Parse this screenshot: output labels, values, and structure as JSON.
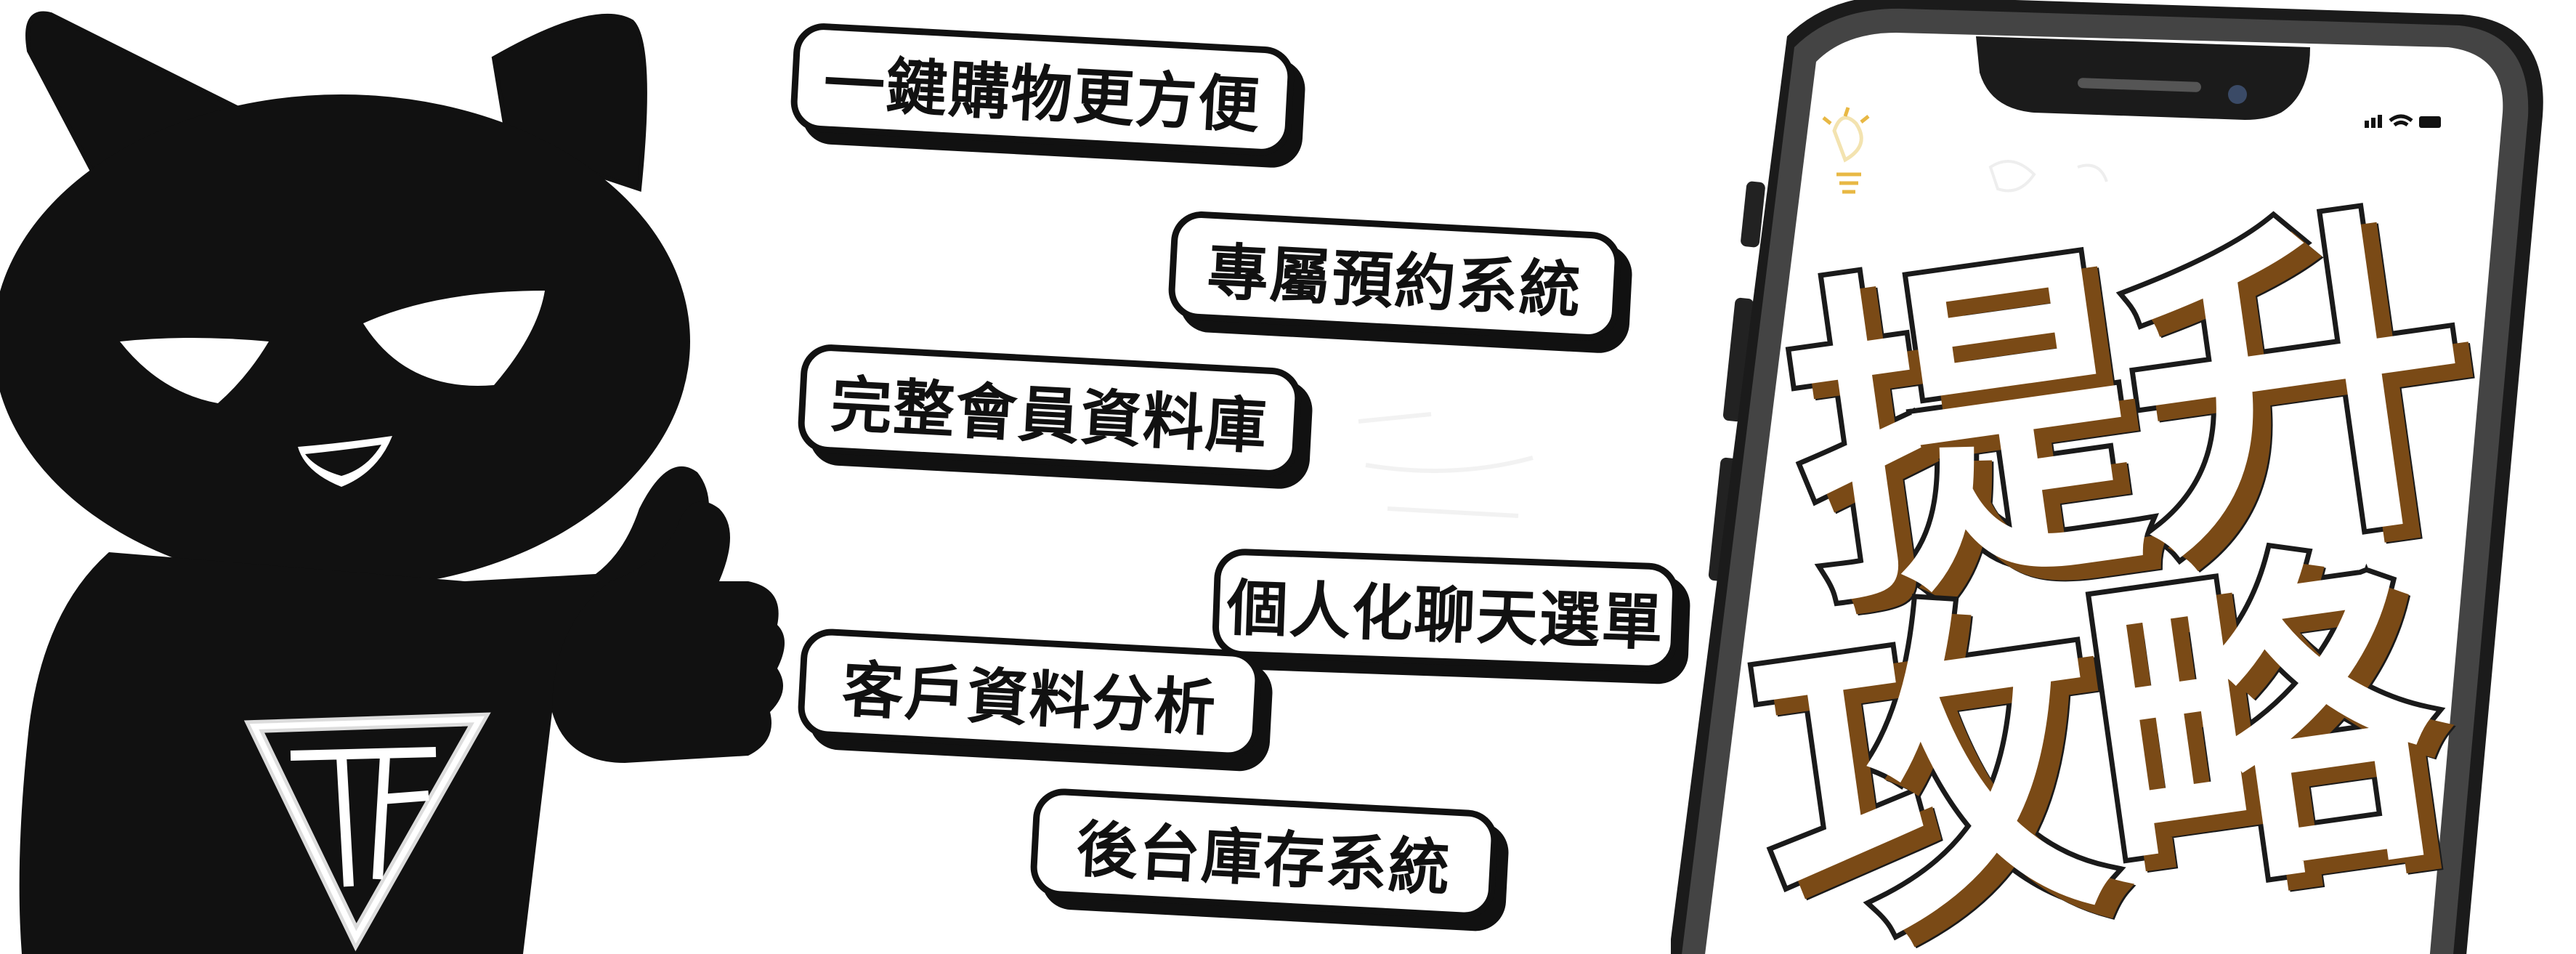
{
  "bubbles": [
    "一鍵購物更方便",
    "專屬預約系統",
    "完整會員資料庫",
    "個人化聊天選單",
    "客戶資料分析",
    "後台庫存系統"
  ],
  "headline": {
    "line1": "提升",
    "line2": "攻略"
  },
  "mascot": {
    "logo_text": "TF"
  },
  "colors": {
    "ink": "#111111",
    "headline_shadow": "#7a4a16",
    "phone_frame": "#1b1b1b",
    "screen_bg": "#ffffff",
    "sketch": "#e8b844"
  },
  "icons": [
    "cat-mascot-icon",
    "thumbs-up-icon",
    "tf-shield-logo-icon",
    "signal-icon",
    "wifi-icon",
    "battery-icon",
    "lightbulb-icon"
  ]
}
